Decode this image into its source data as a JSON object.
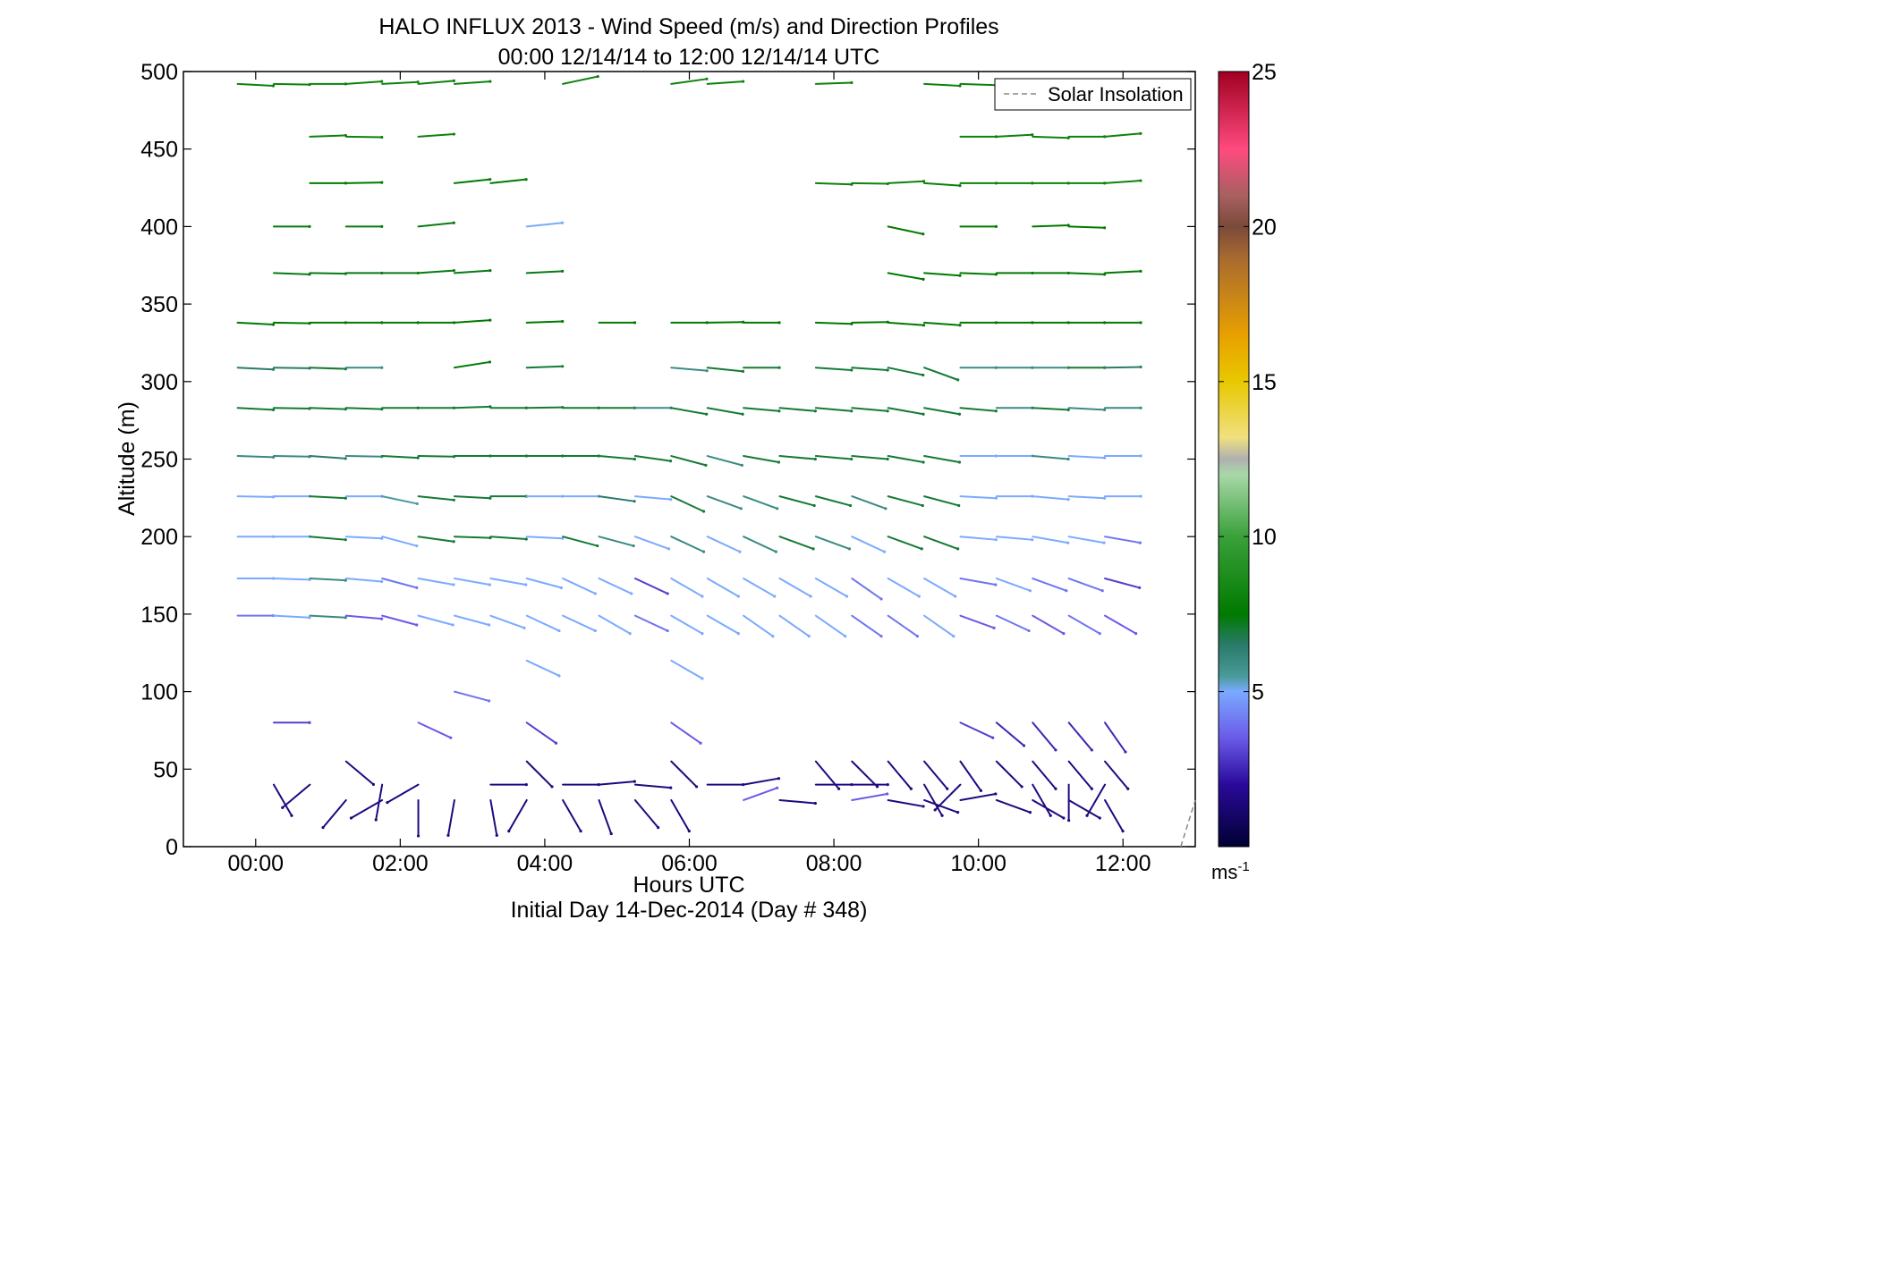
{
  "chart_data": {
    "type": "wind_barb_profile",
    "title_line1": "HALO INFLUX 2013 - Wind Speed (m/s) and Direction Profiles",
    "title_line2": "00:00 12/14/14 to 12:00 12/14/14  UTC",
    "xlabel": "Hours UTC",
    "xlabel2": "Initial Day 14-Dec-2014 (Day # 348)",
    "ylabel": "Altitude (m)",
    "xlim": [
      -1.0,
      13.0
    ],
    "ylim": [
      0,
      500
    ],
    "x_ticks": [
      0,
      2,
      4,
      6,
      8,
      10,
      12
    ],
    "x_tick_labels": [
      "00:00",
      "02:00",
      "04:00",
      "06:00",
      "08:00",
      "10:00",
      "12:00"
    ],
    "y_ticks": [
      0,
      50,
      100,
      150,
      200,
      250,
      300,
      350,
      400,
      450,
      500
    ],
    "y_tick_labels": [
      "0",
      "50",
      "100",
      "150",
      "200",
      "250",
      "300",
      "350",
      "400",
      "450",
      "500"
    ],
    "legend": {
      "label": "Solar Insolation",
      "placement": "top-right",
      "style": "dashed",
      "color": "#888888"
    },
    "colorbar": {
      "range": [
        0,
        25
      ],
      "ticks": [
        5,
        10,
        15,
        20,
        25
      ],
      "tick_labels": [
        "5",
        "10",
        "15",
        "20",
        "25"
      ],
      "unit_label": "ms",
      "unit_exponent": "-1",
      "stops": [
        {
          "v": 0,
          "c": "#000033"
        },
        {
          "v": 2,
          "c": "#2a0a9a"
        },
        {
          "v": 3.5,
          "c": "#6a5ae8"
        },
        {
          "v": 5,
          "c": "#7aaaff"
        },
        {
          "v": 5.5,
          "c": "#4a9a9a"
        },
        {
          "v": 6.5,
          "c": "#2a7a6a"
        },
        {
          "v": 7.5,
          "c": "#007a00"
        },
        {
          "v": 10,
          "c": "#3aa03a"
        },
        {
          "v": 12,
          "c": "#a8d8a8"
        },
        {
          "v": 12.5,
          "c": "#b0b0b0"
        },
        {
          "v": 13.2,
          "c": "#f0e080"
        },
        {
          "v": 15,
          "c": "#e8c800"
        },
        {
          "v": 16.5,
          "c": "#e8a000"
        },
        {
          "v": 19,
          "c": "#a86a30"
        },
        {
          "v": 20,
          "c": "#7a4a3a"
        },
        {
          "v": 21,
          "c": "#a86060"
        },
        {
          "v": 22.5,
          "c": "#ff4a80"
        },
        {
          "v": 25,
          "c": "#a00020"
        }
      ]
    },
    "solar_insolation": [
      [
        12.8,
        0
      ],
      [
        13.0,
        30
      ]
    ],
    "profiles": [
      {
        "alt": 492,
        "x": [
          -0.25,
          0.25,
          0.75,
          1.25,
          1.75,
          2.25,
          2.75,
          4.25,
          5.75,
          6.25,
          7.75,
          9.25,
          9.75,
          10.25,
          10.75,
          11.25
        ],
        "dir": [
          -3,
          -1,
          0,
          4,
          3,
          5,
          4,
          12,
          8,
          4,
          2,
          -3,
          -2,
          2,
          0,
          0
        ],
        "spd": [
          8,
          8,
          8,
          8,
          8,
          8,
          8,
          8,
          8,
          8,
          8,
          8,
          8,
          8,
          8,
          8
        ]
      },
      {
        "alt": 458,
        "x": [
          0.75,
          1.25,
          2.25,
          9.75,
          10.25,
          10.75,
          11.25,
          11.75
        ],
        "dir": [
          2,
          -1,
          4,
          0,
          3,
          -2,
          0,
          5
        ],
        "spd": [
          8,
          8,
          8,
          8,
          8,
          8,
          8,
          8
        ]
      },
      {
        "alt": 428,
        "x": [
          0.75,
          1.25,
          2.75,
          3.25,
          7.75,
          8.25,
          8.75,
          9.25,
          9.75,
          10.25,
          10.75,
          11.25,
          11.75
        ],
        "dir": [
          0,
          1,
          6,
          6,
          -2,
          -1,
          3,
          -4,
          0,
          0,
          0,
          0,
          4
        ],
        "spd": [
          7.5,
          7.5,
          7.5,
          7.5,
          8,
          8,
          8,
          8,
          8,
          8,
          8,
          8,
          8
        ]
      },
      {
        "alt": 400,
        "x": [
          0.25,
          1.25,
          2.25,
          3.75,
          8.75,
          9.75,
          10.75,
          11.25
        ],
        "dir": [
          0,
          0,
          6,
          6,
          -12,
          0,
          2,
          -2
        ],
        "spd": [
          7.3,
          7.3,
          7.3,
          5,
          7.5,
          7.5,
          7.5,
          7.5
        ]
      },
      {
        "alt": 370,
        "x": [
          0.25,
          0.75,
          1.25,
          1.75,
          2.25,
          2.75,
          3.75,
          8.75,
          9.25,
          9.75,
          10.25,
          10.75,
          11.25,
          11.75
        ],
        "dir": [
          -2,
          -1,
          0,
          0,
          4,
          4,
          3,
          -10,
          -4,
          -2,
          0,
          0,
          -2,
          3
        ],
        "spd": [
          7.3,
          7.3,
          7.3,
          7.3,
          7.3,
          7.3,
          7.3,
          7.5,
          7.5,
          7.5,
          7.5,
          7.5,
          7.5,
          7.5
        ]
      },
      {
        "alt": 338,
        "x": [
          -0.25,
          0.25,
          0.75,
          1.25,
          1.75,
          2.25,
          2.75,
          3.75,
          4.75,
          5.75,
          6.25,
          6.75,
          7.75,
          8.25,
          8.75,
          9.25,
          9.75,
          10.25,
          10.75,
          11.25,
          11.75
        ],
        "dir": [
          -3,
          -1,
          0,
          0,
          0,
          0,
          4,
          2,
          0,
          0,
          1,
          0,
          -2,
          1,
          -4,
          -4,
          0,
          0,
          0,
          0,
          0
        ],
        "spd": [
          7.5,
          7.5,
          7.5,
          7.5,
          7.5,
          7.5,
          7.5,
          7.5,
          7.5,
          7.5,
          7.5,
          7.5,
          7.5,
          7.5,
          7.5,
          7.5,
          7.5,
          7.5,
          7.5,
          7.5,
          7.5
        ]
      },
      {
        "alt": 309,
        "x": [
          -0.25,
          0.25,
          0.75,
          1.25,
          2.75,
          3.75,
          5.75,
          6.25,
          6.75,
          7.75,
          8.25,
          8.75,
          9.25,
          9.75,
          10.25,
          10.75,
          11.25,
          11.75
        ],
        "dir": [
          -3,
          -1,
          -2,
          0,
          9,
          2,
          -5,
          -6,
          0,
          -4,
          -4,
          -12,
          -20,
          0,
          0,
          0,
          0,
          1
        ],
        "spd": [
          6.5,
          6.5,
          7,
          6,
          7.5,
          7,
          6,
          7,
          7,
          7,
          7,
          7,
          7,
          6,
          6,
          6,
          7,
          6.5
        ]
      },
      {
        "alt": 283,
        "x": [
          -0.25,
          0.25,
          0.75,
          1.25,
          1.75,
          2.25,
          2.75,
          3.25,
          3.75,
          4.25,
          4.75,
          5.25,
          5.75,
          6.25,
          6.75,
          7.25,
          7.75,
          8.25,
          8.75,
          9.25,
          9.75,
          10.25,
          10.75,
          11.25,
          11.75
        ],
        "dir": [
          -3,
          -1,
          -2,
          -2,
          0,
          0,
          2,
          0,
          1,
          0,
          0,
          0,
          -10,
          -10,
          -5,
          -5,
          -5,
          -5,
          -10,
          -10,
          -5,
          0,
          -3,
          -3,
          0
        ],
        "spd": [
          7,
          7,
          7,
          7,
          7,
          7,
          7,
          7,
          7,
          7,
          7,
          6,
          7,
          7,
          7,
          7,
          7,
          7,
          7,
          7,
          7,
          6,
          7,
          6,
          6
        ]
      },
      {
        "alt": 252,
        "x": [
          -0.25,
          0.25,
          0.75,
          1.25,
          1.75,
          2.25,
          2.75,
          3.25,
          3.75,
          4.25,
          4.75,
          5.25,
          5.75,
          6.25,
          6.75,
          7.25,
          7.75,
          8.25,
          8.75,
          9.25,
          9.75,
          10.25,
          10.75,
          11.25,
          11.75
        ],
        "dir": [
          -2,
          -1,
          -4,
          -1,
          -3,
          -1,
          0,
          0,
          0,
          0,
          -5,
          -8,
          -15,
          -15,
          -10,
          -5,
          -5,
          -5,
          -10,
          -10,
          0,
          0,
          -5,
          -3,
          0
        ],
        "spd": [
          6,
          6,
          6.5,
          6,
          7,
          7,
          7,
          7,
          7,
          7,
          7,
          7,
          7,
          6,
          7,
          7,
          7,
          7,
          7,
          7,
          5,
          5,
          6,
          5,
          5
        ]
      },
      {
        "alt": 226,
        "x": [
          -0.25,
          0.25,
          0.75,
          1.25,
          1.75,
          2.25,
          2.75,
          3.25,
          3.75,
          4.25,
          4.75,
          5.25,
          5.75,
          6.25,
          6.75,
          7.25,
          7.75,
          8.25,
          8.75,
          9.25,
          9.75,
          10.25,
          10.75,
          11.25,
          11.75
        ],
        "dir": [
          -1,
          0,
          -3,
          0,
          -12,
          -6,
          -3,
          0,
          0,
          0,
          -8,
          -5,
          -25,
          -20,
          -20,
          -15,
          -15,
          -20,
          -15,
          -15,
          -3,
          0,
          -5,
          -3,
          0
        ],
        "spd": [
          5,
          5,
          7,
          5,
          5.5,
          7,
          7,
          7,
          5,
          5,
          6.5,
          5,
          7,
          6,
          6,
          7,
          7,
          6,
          7,
          7,
          5,
          5,
          5,
          5,
          5
        ]
      },
      {
        "alt": 200,
        "x": [
          -0.25,
          0.25,
          0.75,
          1.25,
          1.75,
          2.25,
          2.75,
          3.25,
          3.75,
          4.25,
          4.75,
          5.25,
          5.75,
          6.25,
          6.75,
          7.25,
          7.75,
          8.25,
          8.75,
          9.25,
          9.75,
          10.25,
          10.75,
          11.25,
          11.75
        ],
        "dir": [
          0,
          0,
          -5,
          -3,
          -15,
          -8,
          -2,
          -4,
          -3,
          -15,
          -15,
          -20,
          -25,
          -25,
          -25,
          -20,
          -20,
          -25,
          -20,
          -20,
          -5,
          -5,
          -10,
          -10,
          -10
        ],
        "spd": [
          5,
          5,
          7,
          5,
          5,
          7,
          7,
          7,
          5,
          7,
          6,
          5,
          6,
          5,
          6,
          7,
          6,
          5,
          7,
          7,
          5,
          5,
          5,
          5,
          4
        ]
      },
      {
        "alt": 173,
        "x": [
          -0.25,
          0.25,
          0.75,
          1.25,
          1.75,
          2.25,
          2.75,
          3.25,
          3.75,
          4.25,
          4.75,
          5.25,
          5.75,
          6.25,
          6.75,
          7.25,
          7.75,
          8.25,
          8.75,
          9.25,
          9.75,
          10.25,
          10.75,
          11.25,
          11.75
        ],
        "dir": [
          0,
          -2,
          -3,
          -5,
          -15,
          -10,
          -10,
          -10,
          -15,
          -25,
          -25,
          -25,
          -30,
          -30,
          -30,
          -30,
          -30,
          -35,
          -30,
          -30,
          -10,
          -20,
          -20,
          -20,
          -15
        ],
        "spd": [
          5,
          5,
          6,
          5,
          4,
          5,
          5,
          5,
          5,
          5,
          5,
          3,
          5,
          5,
          5,
          5,
          5,
          4,
          5,
          5,
          4,
          5,
          4,
          4,
          3
        ]
      },
      {
        "alt": 149,
        "x": [
          -0.25,
          0.25,
          0.75,
          1.25,
          1.75,
          2.25,
          2.75,
          3.25,
          3.75,
          4.25,
          4.75,
          5.25,
          5.75,
          6.25,
          6.75,
          7.25,
          7.75,
          8.25,
          8.75,
          9.25,
          9.75,
          10.25,
          10.75,
          11.25,
          11.75
        ],
        "dir": [
          0,
          -3,
          -3,
          -5,
          -15,
          -15,
          -15,
          -20,
          -25,
          -25,
          -30,
          -25,
          -30,
          -30,
          -35,
          -35,
          -35,
          -35,
          -35,
          -35,
          -20,
          -25,
          -30,
          -30,
          -30
        ],
        "spd": [
          4,
          5,
          6,
          3.5,
          3.5,
          5,
          5,
          5,
          5,
          5,
          5,
          4,
          5,
          5,
          5,
          5,
          5,
          4,
          4,
          5,
          3.5,
          4,
          3.5,
          4,
          3.5
        ]
      },
      {
        "alt": 120,
        "x": [
          3.75,
          5.75
        ],
        "dir": [
          -25,
          -30
        ],
        "spd": [
          5,
          5
        ]
      },
      {
        "alt": 100,
        "x": [
          2.75
        ],
        "dir": [
          -15
        ],
        "spd": [
          4
        ]
      },
      {
        "alt": 80,
        "x": [
          0.25,
          2.25,
          3.75,
          5.75,
          9.75,
          10.25,
          10.75,
          11.25,
          11.75
        ],
        "dir": [
          0,
          -25,
          -35,
          -35,
          -25,
          -40,
          -50,
          -50,
          -55
        ],
        "spd": [
          3,
          3.5,
          3,
          3.5,
          3,
          2.5,
          2.5,
          2.5,
          2.5
        ]
      },
      {
        "alt": 55,
        "x": [
          1.25,
          3.75,
          5.75,
          7.75,
          8.25,
          8.75,
          9.25,
          9.75,
          10.25,
          10.75,
          11.25,
          11.75
        ],
        "dir": [
          -40,
          -45,
          -45,
          -50,
          -45,
          -50,
          -50,
          -55,
          -45,
          -50,
          -50,
          -50
        ],
        "spd": [
          1.5,
          1.5,
          1.5,
          1.5,
          1.5,
          1.5,
          1.5,
          1.5,
          1.5,
          1.5,
          1.5,
          1.5
        ]
      },
      {
        "alt": 40,
        "x": [
          0.25,
          0.75,
          1.75,
          2.25,
          3.25,
          4.25,
          4.75,
          5.25,
          6.25,
          6.75,
          7.75,
          8.25,
          9.25,
          9.75,
          10.75,
          11.25,
          11.75
        ],
        "dir": [
          -60,
          -140,
          -100,
          -150,
          0,
          0,
          5,
          -5,
          0,
          10,
          0,
          0,
          -60,
          -135,
          -60,
          -90,
          -120
        ],
        "spd": [
          1.5,
          1.5,
          1.5,
          1.5,
          1.5,
          1.5,
          1.5,
          1.5,
          1.5,
          1.5,
          1.5,
          1.5,
          1.5,
          1.5,
          1.5,
          1.5,
          1.5
        ]
      },
      {
        "alt": 30,
        "x": [
          1.25,
          1.75,
          2.25,
          2.75,
          3.25,
          3.75,
          4.25,
          4.75,
          5.25,
          5.75,
          6.75,
          7.25,
          8.25,
          8.75,
          9.25,
          9.75,
          10.25,
          10.75,
          11.25,
          11.75
        ],
        "dir": [
          -130,
          -150,
          -90,
          -100,
          -80,
          -120,
          -60,
          -70,
          -50,
          -60,
          20,
          -5,
          10,
          -10,
          -20,
          10,
          -20,
          -30,
          -30,
          -60
        ],
        "spd": [
          1.5,
          1.5,
          1.5,
          1.5,
          1.5,
          1.5,
          1.5,
          1.5,
          1.5,
          1.5,
          3.5,
          1.5,
          3.5,
          1.5,
          1.5,
          1.5,
          1.5,
          1.5,
          1.5,
          1.5
        ]
      }
    ]
  }
}
